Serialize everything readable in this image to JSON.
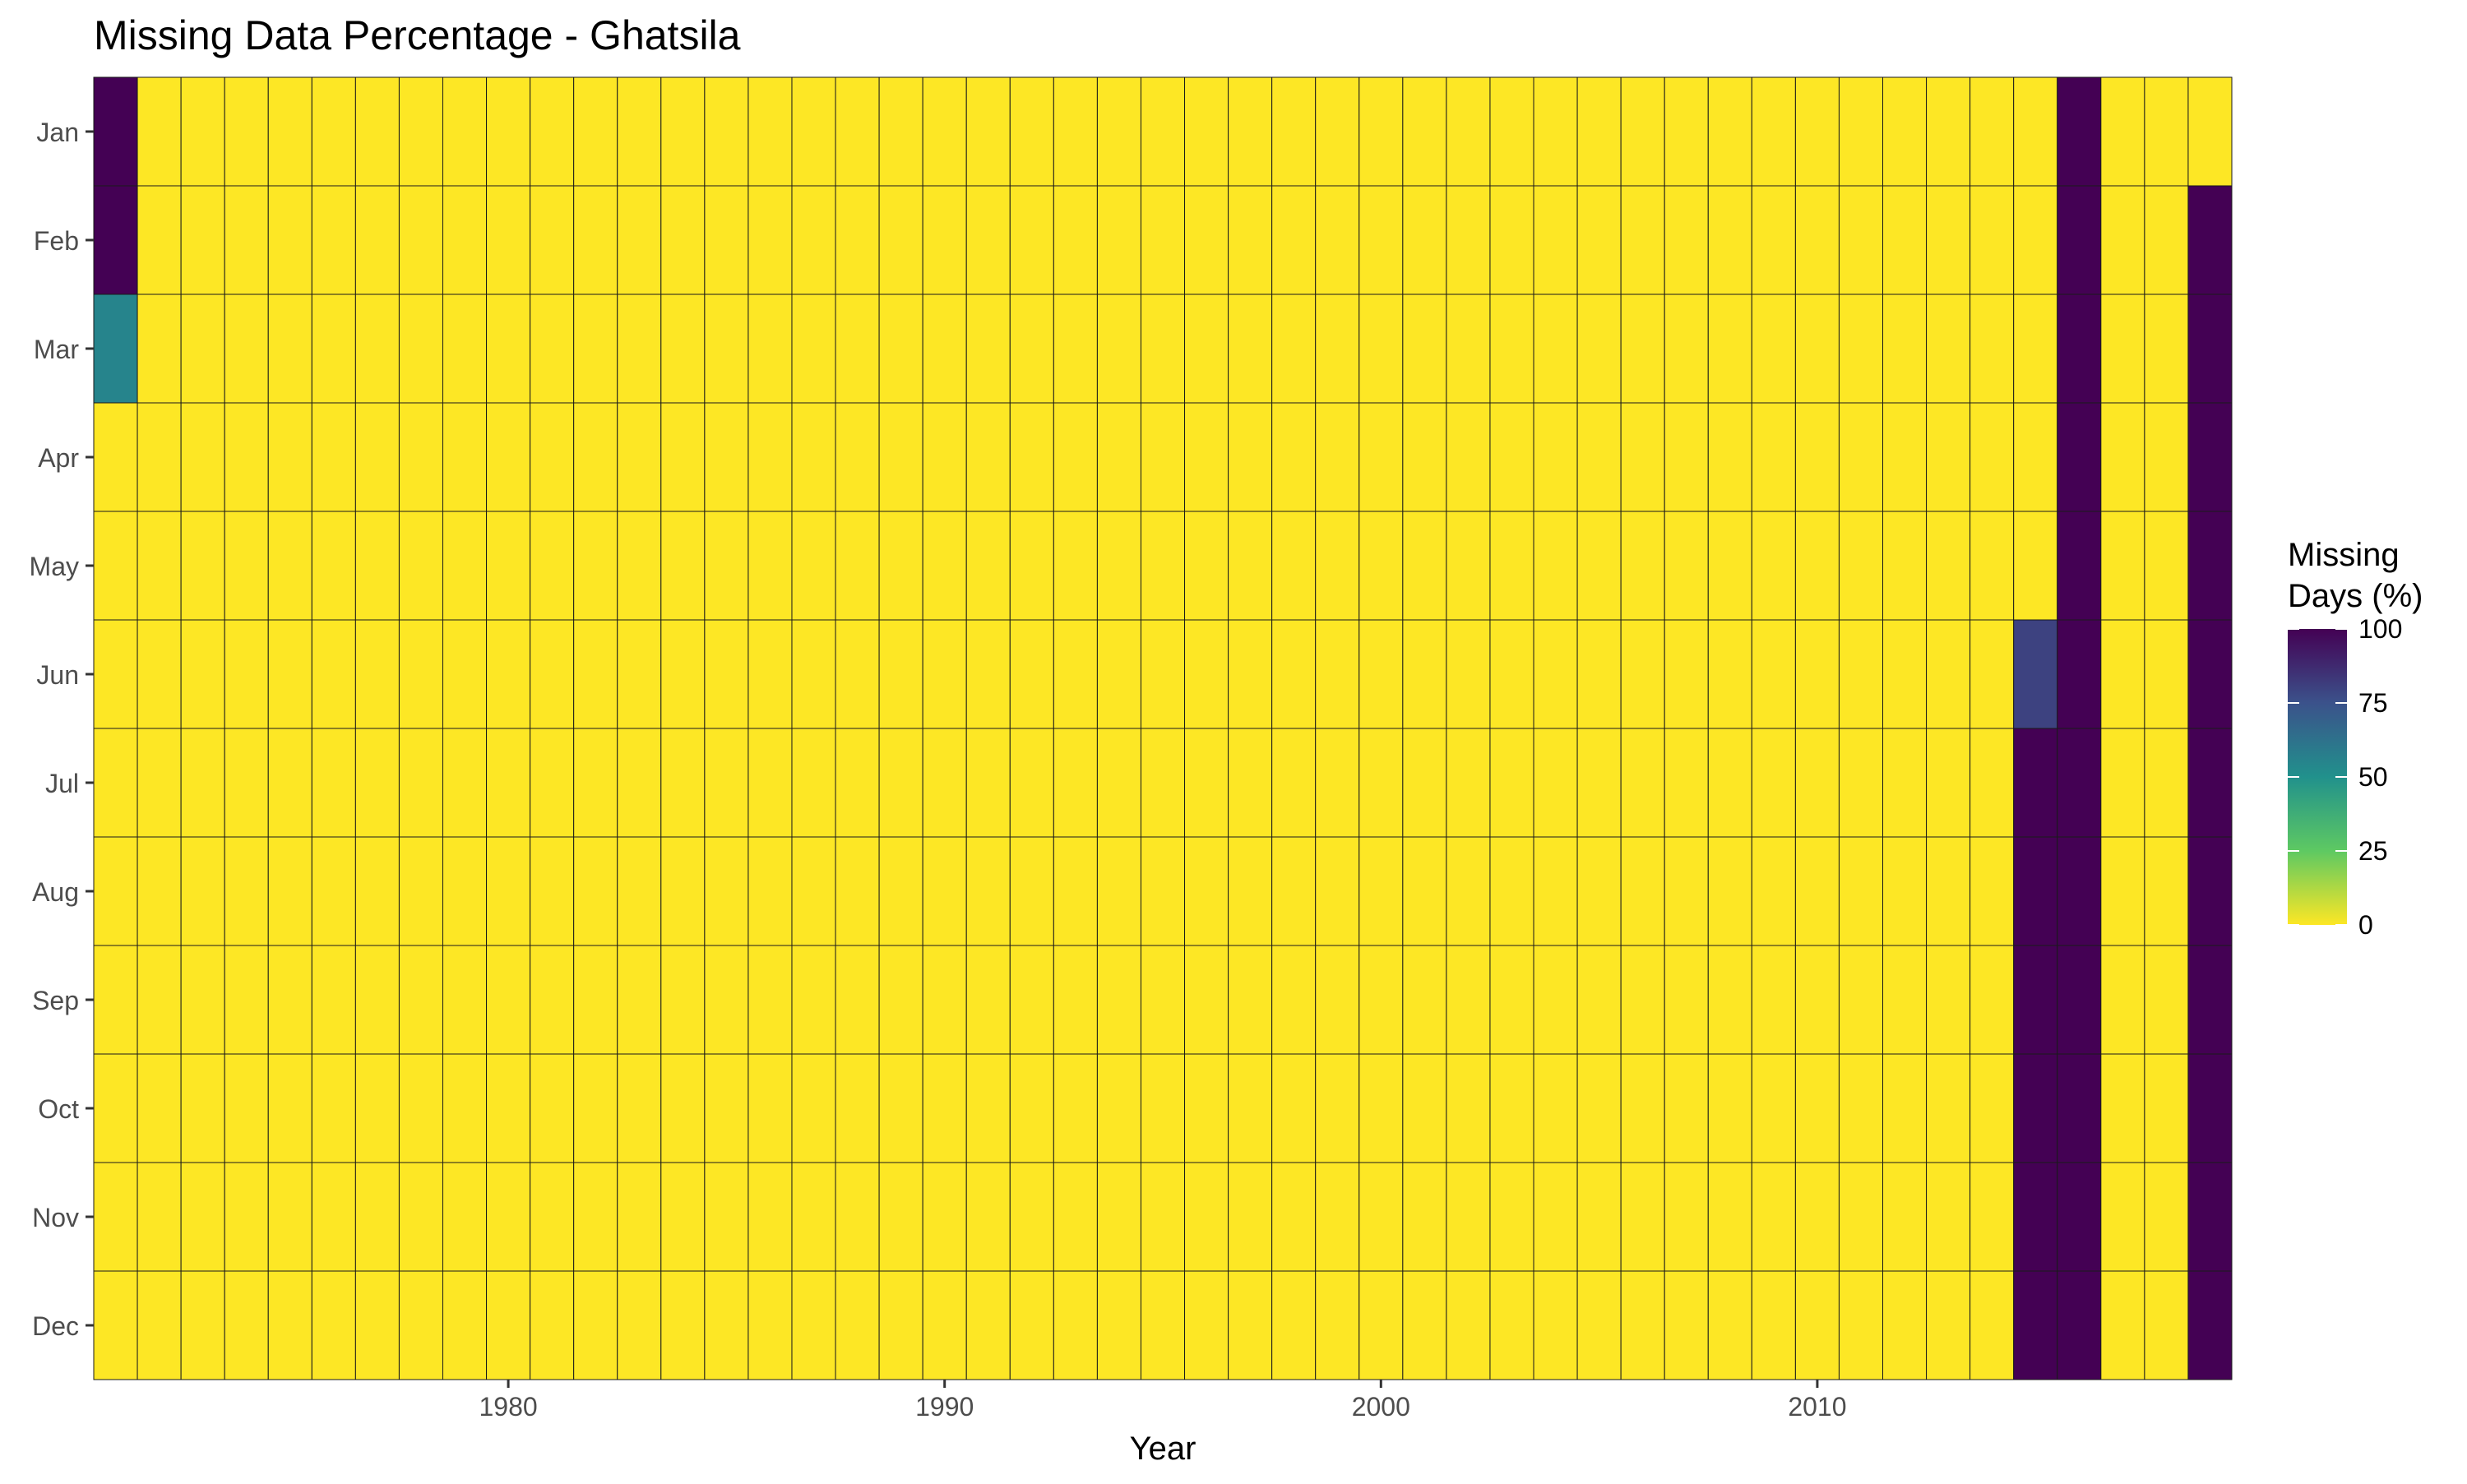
{
  "chart_data": {
    "type": "heatmap",
    "title": "Missing Data Percentage - Ghatsila",
    "xlabel": "Year",
    "ylabel": "",
    "x_start_year": 1971,
    "x_end_year": 2019,
    "x_ticks": [
      1980,
      1990,
      2000,
      2010
    ],
    "y_categories": [
      "Jan",
      "Feb",
      "Mar",
      "Apr",
      "May",
      "Jun",
      "Jul",
      "Aug",
      "Sep",
      "Oct",
      "Nov",
      "Dec"
    ],
    "default_value": 0,
    "nonzero_cells": [
      {
        "year": 1971,
        "month": "Jan",
        "value": 100
      },
      {
        "year": 1971,
        "month": "Feb",
        "value": 100
      },
      {
        "year": 1971,
        "month": "Mar",
        "value": 55
      },
      {
        "year": 2015,
        "month": "Jun",
        "value": 80
      },
      {
        "year": 2015,
        "month": "Jul",
        "value": 100
      },
      {
        "year": 2015,
        "month": "Aug",
        "value": 100
      },
      {
        "year": 2015,
        "month": "Sep",
        "value": 100
      },
      {
        "year": 2015,
        "month": "Oct",
        "value": 100
      },
      {
        "year": 2015,
        "month": "Nov",
        "value": 100
      },
      {
        "year": 2015,
        "month": "Dec",
        "value": 100
      },
      {
        "year": 2016,
        "month": "Jan",
        "value": 100
      },
      {
        "year": 2016,
        "month": "Feb",
        "value": 100
      },
      {
        "year": 2016,
        "month": "Mar",
        "value": 100
      },
      {
        "year": 2016,
        "month": "Apr",
        "value": 100
      },
      {
        "year": 2016,
        "month": "May",
        "value": 100
      },
      {
        "year": 2016,
        "month": "Jun",
        "value": 100
      },
      {
        "year": 2016,
        "month": "Jul",
        "value": 100
      },
      {
        "year": 2016,
        "month": "Aug",
        "value": 100
      },
      {
        "year": 2016,
        "month": "Sep",
        "value": 100
      },
      {
        "year": 2016,
        "month": "Oct",
        "value": 100
      },
      {
        "year": 2016,
        "month": "Nov",
        "value": 100
      },
      {
        "year": 2016,
        "month": "Dec",
        "value": 100
      },
      {
        "year": 2019,
        "month": "Feb",
        "value": 100
      },
      {
        "year": 2019,
        "month": "Mar",
        "value": 100
      },
      {
        "year": 2019,
        "month": "Apr",
        "value": 100
      },
      {
        "year": 2019,
        "month": "May",
        "value": 100
      },
      {
        "year": 2019,
        "month": "Jun",
        "value": 100
      },
      {
        "year": 2019,
        "month": "Jul",
        "value": 100
      },
      {
        "year": 2019,
        "month": "Aug",
        "value": 100
      },
      {
        "year": 2019,
        "month": "Sep",
        "value": 100
      },
      {
        "year": 2019,
        "month": "Oct",
        "value": 100
      },
      {
        "year": 2019,
        "month": "Nov",
        "value": 100
      },
      {
        "year": 2019,
        "month": "Dec",
        "value": 100
      }
    ],
    "value_range": [
      0,
      100
    ],
    "colorscale": "viridis-reversed",
    "colorscale_stops": [
      "#fde725",
      "#5ec962",
      "#21918c",
      "#3b528b",
      "#440154"
    ],
    "legend": {
      "title_line1": "Missing",
      "title_line2": "Days (%)",
      "ticks": [
        100,
        75,
        50,
        25,
        0
      ],
      "position": "right"
    },
    "grid": false
  }
}
